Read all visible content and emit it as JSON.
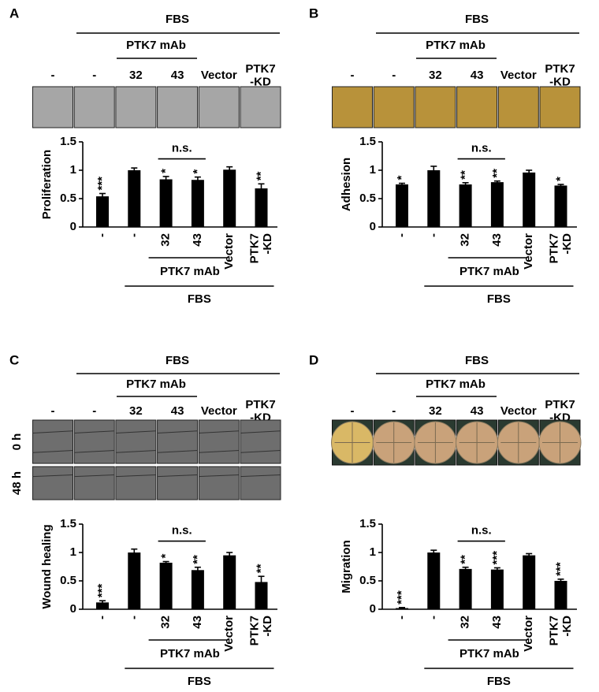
{
  "chart_data": [
    {
      "type": "bar",
      "panel": "A",
      "top_label": "FBS",
      "group_label": "PTK7 mAb",
      "columns": [
        "-",
        "-",
        "32",
        "43",
        "Vector",
        "PTK7 -KD"
      ],
      "ylabel": "Proliferation",
      "categories": [
        "-",
        "-",
        "32",
        "43",
        "Vector",
        "PTK7 -KD"
      ],
      "values": [
        0.54,
        1.0,
        0.84,
        0.83,
        1.01,
        0.68
      ],
      "errors": [
        0.05,
        0.04,
        0.05,
        0.05,
        0.05,
        0.08
      ],
      "significance": [
        "***",
        null,
        "*",
        "*",
        null,
        "**"
      ],
      "ns_label": "n.s.",
      "bottom_group_label": "PTK7 mAb",
      "bottom_top_label": "FBS",
      "ylim": [
        0,
        1.5
      ],
      "yticks": [
        0,
        0.5,
        1,
        1.5
      ],
      "color": "#000000"
    },
    {
      "type": "bar",
      "panel": "B",
      "top_label": "FBS",
      "group_label": "PTK7 mAb",
      "columns": [
        "-",
        "-",
        "32",
        "43",
        "Vector",
        "PTK7 -KD"
      ],
      "ylabel": "Adhesion",
      "categories": [
        "-",
        "-",
        "32",
        "43",
        "Vector",
        "PTK7 -KD"
      ],
      "values": [
        0.75,
        1.0,
        0.75,
        0.79,
        0.96,
        0.73
      ],
      "errors": [
        0.02,
        0.07,
        0.03,
        0.02,
        0.04,
        0.02
      ],
      "significance": [
        "*",
        null,
        "**",
        "**",
        null,
        "*"
      ],
      "ns_label": "n.s.",
      "bottom_group_label": "PTK7 mAb",
      "bottom_top_label": "FBS",
      "ylim": [
        0,
        1.5
      ],
      "yticks": [
        0,
        0.5,
        1,
        1.5
      ],
      "color": "#000000"
    },
    {
      "type": "bar",
      "panel": "C",
      "top_label": "FBS",
      "group_label": "PTK7 mAb",
      "columns": [
        "-",
        "-",
        "32",
        "43",
        "Vector",
        "PTK7 -KD"
      ],
      "row_labels": [
        "0 h",
        "48 h"
      ],
      "ylabel": "Wound healing",
      "categories": [
        "-",
        "-",
        "32",
        "43",
        "Vector",
        "PTK7 -KD"
      ],
      "values": [
        0.12,
        1.0,
        0.82,
        0.69,
        0.95,
        0.48
      ],
      "errors": [
        0.03,
        0.06,
        0.02,
        0.05,
        0.05,
        0.1
      ],
      "significance": [
        "***",
        null,
        "*",
        "**",
        null,
        "**"
      ],
      "ns_label": "n.s.",
      "bottom_group_label": "PTK7 mAb",
      "bottom_top_label": "FBS",
      "ylim": [
        0,
        1.5
      ],
      "yticks": [
        0,
        0.5,
        1,
        1.5
      ],
      "color": "#000000"
    },
    {
      "type": "bar",
      "panel": "D",
      "top_label": "FBS",
      "group_label": "PTK7 mAb",
      "columns": [
        "-",
        "-",
        "32",
        "43",
        "Vector",
        "PTK7 -KD"
      ],
      "ylabel": "Migration",
      "categories": [
        "-",
        "-",
        "32",
        "43",
        "Vector",
        "PTK7 -KD"
      ],
      "values": [
        0.02,
        1.0,
        0.71,
        0.7,
        0.95,
        0.5
      ],
      "errors": [
        0.01,
        0.04,
        0.03,
        0.03,
        0.03,
        0.03
      ],
      "significance": [
        "***",
        null,
        "**",
        "***",
        null,
        "***"
      ],
      "ns_label": "n.s.",
      "bottom_group_label": "PTK7 mAb",
      "bottom_top_label": "FBS",
      "ylim": [
        0,
        1.5
      ],
      "yticks": [
        0,
        0.5,
        1,
        1.5
      ],
      "color": "#000000"
    }
  ]
}
